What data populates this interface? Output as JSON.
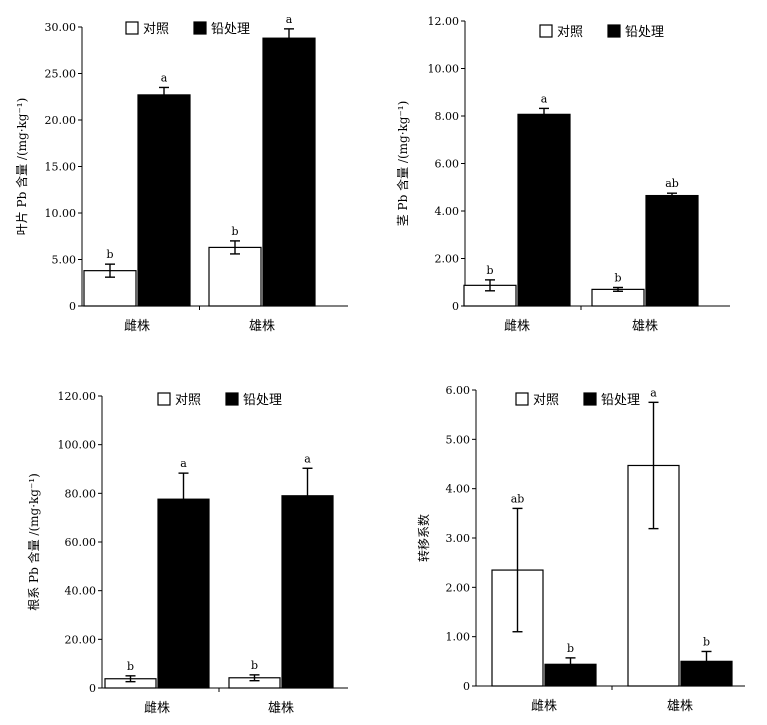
{
  "legend": {
    "control": "对照",
    "lead": "铅处理"
  },
  "chart_data": [
    {
      "type": "bar",
      "ylabel": "叶片 Pb 含量 /(mg·kg⁻¹)",
      "categories": [
        "雌株",
        "雄株"
      ],
      "ylim": [
        0,
        30
      ],
      "yticks": [
        "0",
        "5.00",
        "10.00",
        "15.00",
        "20.00",
        "25.00",
        "30.00"
      ],
      "legend_position": "top-left",
      "series": [
        {
          "name": "对照",
          "values": [
            3.8,
            6.3
          ],
          "errors": [
            0.7,
            0.7
          ],
          "letters": [
            "b",
            "b"
          ],
          "fill": "#ffffff"
        },
        {
          "name": "铅处理",
          "values": [
            22.7,
            28.8
          ],
          "errors": [
            0.8,
            1.0
          ],
          "letters": [
            "a",
            "a"
          ],
          "fill": "#000000"
        }
      ]
    },
    {
      "type": "bar",
      "ylabel": "茎 Pb 含量 /(mg·kg⁻¹)",
      "categories": [
        "雌株",
        "雄株"
      ],
      "ylim": [
        0,
        12
      ],
      "yticks": [
        "0",
        "2.00",
        "4.00",
        "6.00",
        "8.00",
        "10.00",
        "12.00"
      ],
      "legend_position": "top-left",
      "series": [
        {
          "name": "对照",
          "values": [
            0.87,
            0.7
          ],
          "errors": [
            0.23,
            0.08
          ],
          "letters": [
            "b",
            "b"
          ],
          "fill": "#ffffff"
        },
        {
          "name": "铅处理",
          "values": [
            8.07,
            4.65
          ],
          "errors": [
            0.25,
            0.1
          ],
          "letters": [
            "a",
            "ab"
          ],
          "fill": "#000000"
        }
      ]
    },
    {
      "type": "bar",
      "ylabel": "根系 Pb 含量 /(mg·kg⁻¹)",
      "categories": [
        "雌株",
        "雄株"
      ],
      "ylim": [
        0,
        120
      ],
      "yticks": [
        "0",
        "20.00",
        "40.00",
        "60.00",
        "80.00",
        "100.00",
        "120.00"
      ],
      "legend_position": "top-left",
      "series": [
        {
          "name": "对照",
          "values": [
            3.8,
            4.2
          ],
          "errors": [
            1.2,
            1.2
          ],
          "letters": [
            "b",
            "b"
          ],
          "fill": "#ffffff"
        },
        {
          "name": "铅处理",
          "values": [
            77.6,
            79.0
          ],
          "errors": [
            10.7,
            11.3
          ],
          "letters": [
            "a",
            "a"
          ],
          "fill": "#000000"
        }
      ]
    },
    {
      "type": "bar",
      "ylabel": "转移系数",
      "categories": [
        "雌株",
        "雄株"
      ],
      "ylim": [
        0,
        6
      ],
      "yticks": [
        "0",
        "1.00",
        "2.00",
        "3.00",
        "4.00",
        "5.00",
        "6.00"
      ],
      "legend_position": "top-left",
      "series": [
        {
          "name": "对照",
          "values": [
            2.35,
            4.47
          ],
          "errors": [
            1.25,
            1.28
          ],
          "letters": [
            "ab",
            "a"
          ],
          "fill": "#ffffff"
        },
        {
          "name": "铅处理",
          "values": [
            0.44,
            0.5
          ],
          "errors": [
            0.13,
            0.2
          ],
          "letters": [
            "b",
            "b"
          ],
          "fill": "#000000"
        }
      ]
    }
  ]
}
